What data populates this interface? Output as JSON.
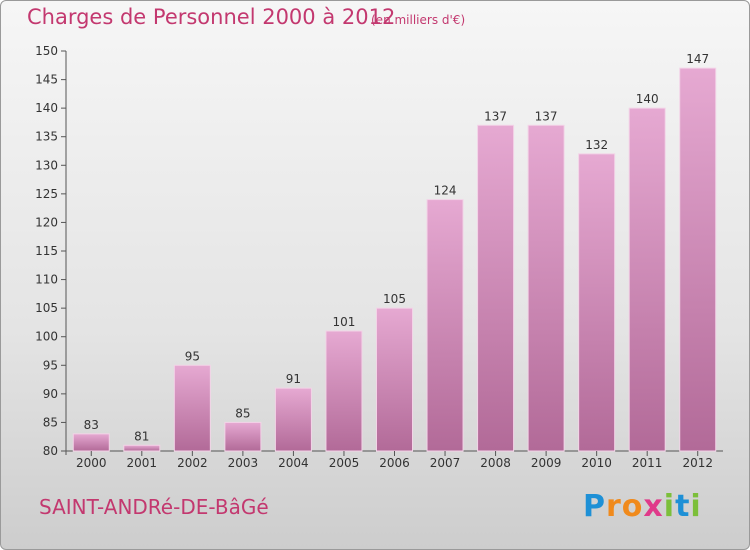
{
  "header": {
    "title": "Charges de Personnel 2000 à 2012",
    "subtitle": "(en milliers d'€)"
  },
  "footer": {
    "commune": "SAINT-ANDRé-DE-BâGé",
    "logo": {
      "letters": [
        "P",
        "r",
        "o",
        "x",
        "i",
        "t",
        "i"
      ],
      "colors": [
        "#1e90d6",
        "#f08a1c",
        "#f08a1c",
        "#e03a8a",
        "#7cbf3a",
        "#1e90d6",
        "#7cbf3a"
      ]
    }
  },
  "colors": {
    "accent": "#c3386f",
    "bar_top": "#e6a9d2",
    "bar_bottom": "#b26a98"
  },
  "chart_data": {
    "type": "bar",
    "title": "Charges de Personnel 2000 à 2012",
    "subtitle": "(en milliers d'€)",
    "categories": [
      "2000",
      "2001",
      "2002",
      "2003",
      "2004",
      "2005",
      "2006",
      "2007",
      "2008",
      "2009",
      "2010",
      "2011",
      "2012"
    ],
    "values": [
      83,
      81,
      95,
      85,
      91,
      101,
      105,
      124,
      137,
      137,
      132,
      140,
      147
    ],
    "ylim": [
      80,
      150
    ],
    "yticks": [
      80,
      85,
      90,
      95,
      100,
      105,
      110,
      115,
      120,
      125,
      130,
      135,
      140,
      145,
      150
    ],
    "grid": false,
    "legend": "none"
  }
}
